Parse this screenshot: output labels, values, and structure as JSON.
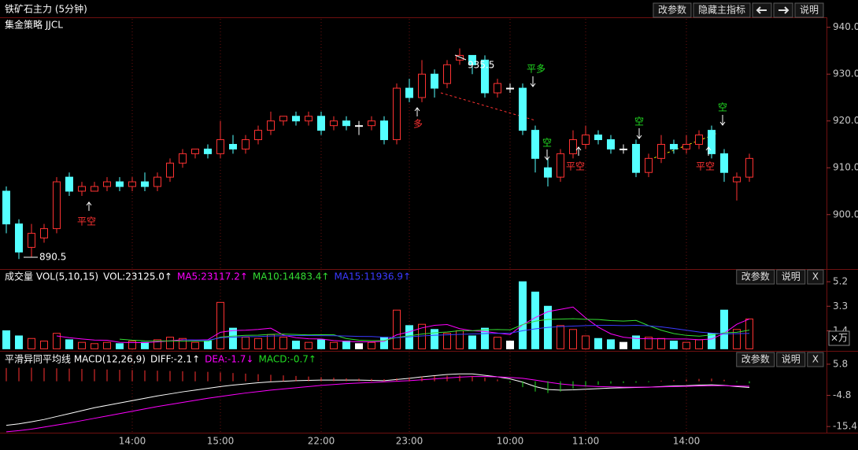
{
  "chart_data": [
    {
      "type": "candlestick",
      "title": "铁矿石主力 (5分钟)",
      "subtitle": "集金策略 JJCL",
      "buttons": [
        "改参数",
        "隐藏主指标",
        "说明"
      ],
      "categories": [
        null,
        null,
        null,
        null,
        null,
        null,
        null,
        null,
        null,
        null,
        "14:00",
        null,
        null,
        null,
        null,
        null,
        null,
        "15:00",
        null,
        null,
        null,
        null,
        null,
        null,
        null,
        "22:00",
        null,
        null,
        null,
        null,
        null,
        null,
        "23:00",
        null,
        null,
        null,
        null,
        null,
        null,
        null,
        "10:00",
        null,
        null,
        null,
        null,
        null,
        "11:00",
        null,
        null,
        null,
        null,
        null,
        null,
        null,
        "14:00",
        null,
        null,
        null,
        null,
        null
      ],
      "open": [
        905,
        898,
        893,
        895,
        897,
        908,
        905,
        905,
        906,
        907,
        906,
        907,
        906,
        908,
        911,
        913,
        914,
        913,
        915,
        914,
        916,
        918,
        920,
        921,
        920,
        921,
        919,
        920,
        919,
        919,
        920,
        916,
        927,
        925,
        930,
        928,
        933,
        934,
        933,
        926,
        927,
        927,
        918,
        910,
        908,
        913,
        915,
        917,
        916,
        914,
        915,
        909,
        912,
        915,
        914,
        915,
        918,
        913,
        907,
        908
      ],
      "high": [
        906,
        899,
        898,
        898,
        908,
        909,
        907,
        907,
        908,
        908,
        908,
        909,
        909,
        912,
        914,
        914,
        915,
        920,
        917,
        917,
        919,
        922,
        921,
        922,
        922,
        922,
        921,
        921,
        920,
        921,
        921,
        928,
        929,
        933,
        931,
        933,
        935.5,
        934,
        934,
        929,
        928,
        928,
        919,
        912,
        914,
        918,
        919,
        918,
        917,
        915,
        916,
        913,
        917,
        916,
        917,
        918,
        919,
        914,
        909,
        913
      ],
      "low": [
        896,
        890.5,
        891,
        894,
        896,
        904,
        904,
        905,
        905,
        905,
        905,
        905,
        905,
        907,
        910,
        912,
        912,
        912,
        913,
        913,
        915,
        917,
        919,
        919,
        919,
        917,
        918,
        918,
        917,
        918,
        915,
        915,
        924,
        924,
        925,
        927,
        932,
        930,
        925,
        925,
        926,
        917,
        909,
        906,
        907,
        912,
        914,
        915,
        913,
        913,
        908,
        908,
        911,
        913,
        913,
        914,
        912,
        907,
        903,
        907
      ],
      "close": [
        898,
        892,
        896,
        897,
        907,
        905,
        906,
        906,
        907,
        906,
        907,
        906,
        908,
        911,
        913,
        914,
        913,
        916,
        914,
        916,
        918,
        920,
        921,
        920,
        921,
        918,
        920,
        919,
        919,
        920,
        916,
        927,
        925,
        930,
        927,
        932,
        934,
        932,
        926,
        928,
        927,
        918,
        912,
        908,
        913,
        916,
        917,
        916,
        914,
        914,
        909,
        912,
        915,
        914,
        915,
        917,
        913,
        909,
        908,
        912
      ],
      "up_color": "#ff3232",
      "down_color": "#54ffff",
      "flat_color": "#ffffff",
      "ylim": [
        888.7,
        941.8
      ],
      "yticks": [
        {
          "value": 900,
          "label": "900.0"
        },
        {
          "value": 910,
          "label": "910.0"
        },
        {
          "value": 920,
          "label": "920.0"
        },
        {
          "value": 930,
          "label": "930.0"
        },
        {
          "value": 940,
          "label": "940.0"
        }
      ],
      "annotations": [
        {
          "text": "平空",
          "color": "#ff3232"
        },
        {
          "text": "多",
          "color": "#ff3232"
        },
        {
          "text": "平多",
          "color": "#22dd22"
        },
        {
          "text": "空",
          "color": "#22dd22"
        },
        {
          "text": "平空",
          "color": "#ff3232"
        },
        {
          "text": "空",
          "color": "#22dd22"
        },
        {
          "text": "平空",
          "color": "#ff3232"
        },
        {
          "text": "空",
          "color": "#22dd22"
        }
      ]
    },
    {
      "type": "bar",
      "title": "成交量 VOL(5,10,15)",
      "buttons": [
        "改参数",
        "说明",
        "X"
      ],
      "unit_label": "×万",
      "ylim": [
        -0.1,
        6.0
      ],
      "yticks": [
        1.4,
        3.3,
        5.2
      ],
      "series": [
        {
          "name": "VOL:23125.0↑",
          "color": "#ffffff",
          "values": [
            1.4,
            1.0,
            0.8,
            0.6,
            1.2,
            0.7,
            0.5,
            0.4,
            0.5,
            0.4,
            0.6,
            0.5,
            0.7,
            0.9,
            0.8,
            0.5,
            0.6,
            3.6,
            1.6,
            0.9,
            0.8,
            1.1,
            0.9,
            0.6,
            0.5,
            0.7,
            0.5,
            0.6,
            0.4,
            0.5,
            0.9,
            3.0,
            1.8,
            1.9,
            1.5,
            1.2,
            1.4,
            1.0,
            1.6,
            0.9,
            0.6,
            5.2,
            4.4,
            3.3,
            1.8,
            1.5,
            1.0,
            0.8,
            0.7,
            0.5,
            1.0,
            0.9,
            0.8,
            0.6,
            0.5,
            0.7,
            1.2,
            3.0,
            1.5,
            2.3125
          ]
        },
        {
          "name": "MA5:23117.2↑",
          "color": "#ff00ff",
          "type": "line",
          "values": [
            null,
            null,
            null,
            null,
            1.0,
            0.86,
            0.76,
            0.68,
            0.66,
            0.5,
            0.48,
            0.48,
            0.54,
            0.62,
            0.7,
            0.68,
            0.7,
            1.28,
            1.42,
            1.44,
            1.5,
            1.6,
            1.06,
            0.86,
            0.78,
            0.76,
            0.64,
            0.58,
            0.54,
            0.54,
            0.58,
            1.08,
            1.32,
            1.62,
            1.82,
            1.88,
            1.56,
            1.4,
            1.34,
            1.22,
            1.1,
            1.86,
            2.42,
            2.88,
            3.06,
            3.24,
            2.4,
            1.68,
            1.16,
            0.9,
            0.8,
            0.78,
            0.78,
            0.76,
            0.76,
            0.7,
            0.76,
            1.2,
            1.9,
            2.31172
          ]
        },
        {
          "name": "MA10:14483.4↑",
          "color": "#33dd33",
          "type": "line",
          "values": [
            null,
            null,
            null,
            null,
            null,
            null,
            null,
            null,
            null,
            0.75,
            0.67,
            0.62,
            0.61,
            0.61,
            0.6,
            0.6,
            0.59,
            0.91,
            0.99,
            1.04,
            1.06,
            1.12,
            1.14,
            1.11,
            1.08,
            1.1,
            1.09,
            0.79,
            0.67,
            0.63,
            0.64,
            0.88,
            1.01,
            1.14,
            1.24,
            1.3,
            1.4,
            1.4,
            1.47,
            1.49,
            1.47,
            1.88,
            2.14,
            2.28,
            2.3,
            2.33,
            2.29,
            2.27,
            2.19,
            2.15,
            2.2,
            1.8,
            1.44,
            1.18,
            1.04,
            0.98,
            1.08,
            1.24,
            1.28,
            1.44834
          ]
        },
        {
          "name": "MA15:11936.9↑",
          "color": "#3a3aff",
          "type": "line",
          "values": [
            null,
            null,
            null,
            null,
            null,
            null,
            null,
            null,
            null,
            null,
            null,
            null,
            null,
            null,
            0.7,
            0.68,
            0.66,
            0.85,
            0.91,
            0.94,
            0.95,
            0.99,
            1.01,
            1.03,
            1.03,
            1.02,
            1.01,
            0.99,
            0.96,
            0.95,
            0.9,
            0.86,
            0.93,
            1.0,
            1.05,
            1.08,
            1.12,
            1.15,
            1.18,
            1.2,
            1.21,
            1.4,
            1.55,
            1.66,
            1.72,
            1.76,
            1.8,
            1.82,
            1.82,
            1.8,
            1.82,
            1.78,
            1.7,
            1.58,
            1.44,
            1.3,
            1.22,
            1.16,
            1.17,
            1.19369
          ]
        }
      ]
    },
    {
      "type": "line",
      "title": "平滑异同平均线 MACD(12,26,9)",
      "buttons": [
        "改参数",
        "说明",
        "X"
      ],
      "ylim": [
        -17.5,
        9.8
      ],
      "yticks": [
        -15.4,
        -4.8,
        5.8
      ],
      "up_color": "#ff3232",
      "down_color": "#22dd22",
      "series": [
        {
          "name": "DIFF:-2.1↑",
          "color": "#ffffff",
          "values": [
            -15,
            -14.5,
            -13.8,
            -13,
            -12,
            -11,
            -10,
            -9,
            -8.2,
            -7.4,
            -6.6,
            -5.8,
            -5,
            -4.3,
            -3.6,
            -3,
            -2.4,
            -1.8,
            -1.3,
            -0.9,
            -0.5,
            -0.2,
            0,
            0.2,
            0.3,
            0.4,
            0.4,
            0.4,
            0.4,
            0.3,
            0.2,
            0.6,
            1.0,
            1.5,
            1.9,
            2.3,
            2.5,
            2.5,
            2.0,
            1.5,
            0.8,
            -0.3,
            -1.8,
            -2.8,
            -3.0,
            -2.9,
            -2.7,
            -2.5,
            -2.3,
            -2.2,
            -2.1,
            -2.0,
            -1.8,
            -1.6,
            -1.5,
            -1.3,
            -1.2,
            -1.4,
            -1.8,
            -2.1
          ]
        },
        {
          "name": "DEA:-1.7↓",
          "color": "#ff00ff",
          "values": [
            -17.2,
            -16.8,
            -16.3,
            -15.6,
            -14.9,
            -14.2,
            -13.4,
            -12.6,
            -11.8,
            -11,
            -10.2,
            -9.4,
            -8.6,
            -7.9,
            -7.2,
            -6.5,
            -5.8,
            -5.2,
            -4.6,
            -4.0,
            -3.5,
            -3.0,
            -2.6,
            -2.2,
            -1.8,
            -1.4,
            -1.1,
            -0.8,
            -0.6,
            -0.4,
            -0.2,
            0,
            0.2,
            0.5,
            0.8,
            1.1,
            1.4,
            1.6,
            1.6,
            1.5,
            1.3,
            1.0,
            0.4,
            -0.3,
            -0.9,
            -1.3,
            -1.6,
            -1.8,
            -1.9,
            -2.0,
            -2.0,
            -2.0,
            -1.9,
            -1.8,
            -1.7,
            -1.6,
            -1.5,
            -1.5,
            -1.6,
            -1.7
          ]
        },
        {
          "name": "MACD:-0.7↑",
          "color": "#22dd22",
          "type": "bar",
          "values": [
            4.5,
            4.6,
            4.6,
            4.5,
            4.4,
            4.3,
            4.2,
            4.1,
            4.0,
            3.9,
            3.8,
            3.7,
            3.6,
            3.5,
            3.4,
            3.3,
            3.2,
            3.0,
            2.8,
            2.6,
            2.4,
            2.2,
            2.0,
            1.8,
            1.6,
            1.4,
            1.2,
            1.0,
            0.9,
            0.8,
            0.7,
            1.0,
            1.3,
            1.6,
            1.8,
            1.9,
            2.0,
            1.8,
            1.2,
            0.6,
            -0.5,
            -2.0,
            -3.5,
            -4.0,
            -3.5,
            -2.5,
            -1.8,
            -1.2,
            -0.8,
            -0.6,
            -0.5,
            -0.3,
            0.2,
            0.4,
            0.6,
            0.8,
            0.9,
            0.5,
            -0.3,
            -0.7
          ]
        }
      ]
    }
  ]
}
